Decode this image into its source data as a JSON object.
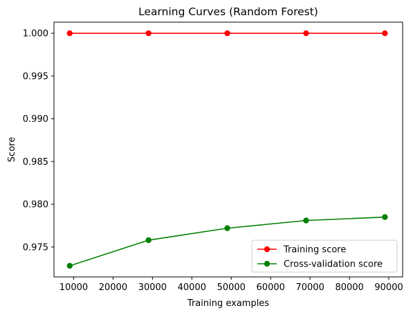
{
  "chart_data": {
    "type": "line",
    "title": "Learning Curves (Random Forest)",
    "xlabel": "Training examples",
    "ylabel": "Score",
    "xlim": [
      5000,
      93500
    ],
    "ylim": [
      0.9715,
      1.0013
    ],
    "x_ticks": [
      10000,
      20000,
      30000,
      40000,
      50000,
      60000,
      70000,
      80000,
      90000
    ],
    "x_tick_labels": [
      "10000",
      "20000",
      "30000",
      "40000",
      "50000",
      "60000",
      "70000",
      "80000",
      "90000"
    ],
    "y_ticks": [
      0.975,
      0.98,
      0.985,
      0.99,
      0.995,
      1.0
    ],
    "y_tick_labels": [
      "0.975",
      "0.980",
      "0.985",
      "0.990",
      "0.995",
      "1.000"
    ],
    "grid": false,
    "legend_position": "bottom-right",
    "x": [
      9000,
      29000,
      49000,
      69000,
      89000
    ],
    "series": [
      {
        "name": "Training score",
        "color": "#ff0000",
        "marker": "circle",
        "values": [
          1.0,
          1.0,
          1.0,
          1.0,
          1.0
        ]
      },
      {
        "name": "Cross-validation score",
        "color": "#008000",
        "marker": "circle",
        "values": [
          0.9728,
          0.9758,
          0.9772,
          0.9781,
          0.9785
        ]
      }
    ]
  }
}
